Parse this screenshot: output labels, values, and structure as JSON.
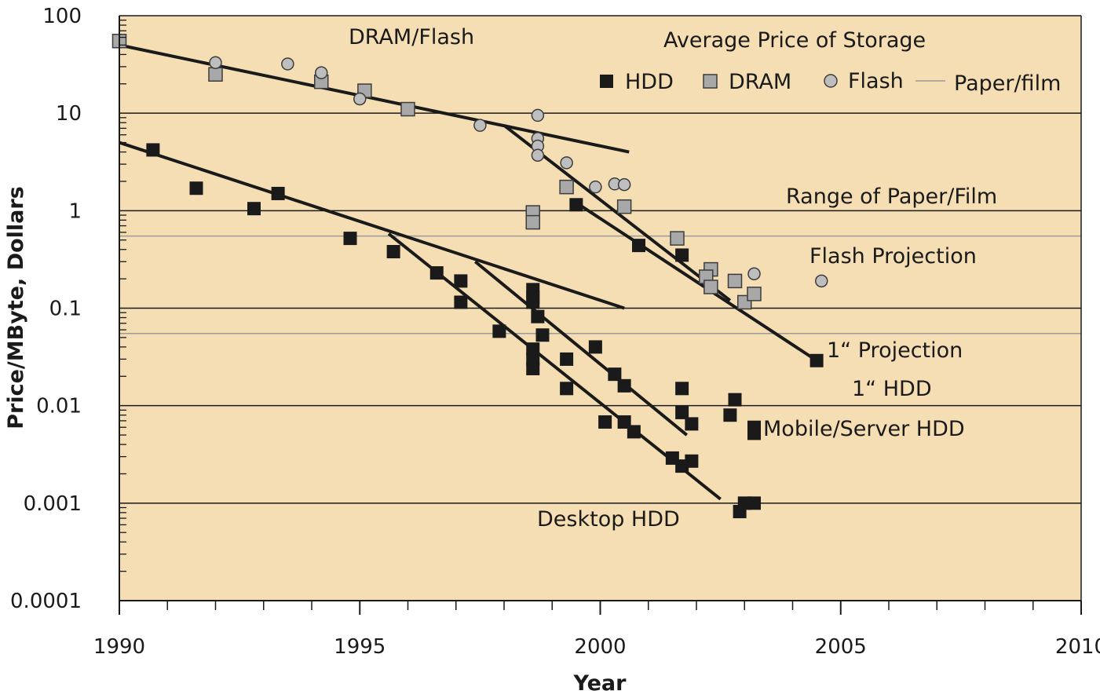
{
  "chart_data": {
    "type": "scatter",
    "title": "Average Price of Storage",
    "xlabel": "Year",
    "ylabel": "Price/MByte, Dollars",
    "xlim": [
      1990,
      2010
    ],
    "ylim": [
      0.0001,
      100
    ],
    "yscale": "log",
    "grid": "horizontal at each decade",
    "legend_placement": "top-right",
    "colors": {
      "background": "#f5deb3",
      "hdd": "#1a1a1a",
      "dram_fill": "#a8a8a8",
      "flash_fill": "#bebebe",
      "paper_film": "#9a9a9a",
      "trend": "#1a1a1a"
    },
    "x_ticks": [
      "1990",
      "1995",
      "2000",
      "2005",
      "2010"
    ],
    "y_ticks": [
      {
        "value": 100,
        "label": "100"
      },
      {
        "value": 10,
        "label": "10"
      },
      {
        "value": 1,
        "label": "1"
      },
      {
        "value": 0.1,
        "label": "0.1"
      },
      {
        "value": 0.01,
        "label": "0.01"
      },
      {
        "value": 0.001,
        "label": "0.001"
      },
      {
        "value": 0.0001,
        "label": "0.0001"
      }
    ],
    "legend": [
      {
        "key": "hdd",
        "label": "HDD",
        "marker": "square-dark"
      },
      {
        "key": "dram",
        "label": "DRAM",
        "marker": "square-gray"
      },
      {
        "key": "flash",
        "label": "Flash",
        "marker": "circle-gray"
      },
      {
        "key": "paper",
        "label": "Paper/film",
        "marker": "line-gray"
      }
    ],
    "paper_film_range": [
      0.055,
      0.55
    ],
    "series": [
      {
        "name": "HDD",
        "marker": "square-dark",
        "points": [
          [
            1990.7,
            4.2
          ],
          [
            1991.6,
            1.7
          ],
          [
            1992.8,
            1.05
          ],
          [
            1993.3,
            1.5
          ],
          [
            1994.8,
            0.52
          ],
          [
            1995.7,
            0.38
          ],
          [
            1996.6,
            0.23
          ],
          [
            1997.1,
            0.19
          ],
          [
            1997.1,
            0.115
          ],
          [
            1997.9,
            0.058
          ],
          [
            1998.6,
            0.155
          ],
          [
            1998.6,
            0.13
          ],
          [
            1998.6,
            0.115
          ],
          [
            1998.7,
            0.082
          ],
          [
            1998.8,
            0.053
          ],
          [
            1998.6,
            0.038
          ],
          [
            1998.6,
            0.03
          ],
          [
            1998.6,
            0.024
          ],
          [
            1999.3,
            0.03
          ],
          [
            1999.3,
            0.015
          ],
          [
            1999.9,
            0.04
          ],
          [
            1999.5,
            1.15
          ],
          [
            2000.3,
            0.021
          ],
          [
            2000.5,
            0.016
          ],
          [
            2000.8,
            0.44
          ],
          [
            2000.1,
            0.0068
          ],
          [
            2000.5,
            0.0068
          ],
          [
            2000.7,
            0.0054
          ],
          [
            2001.7,
            0.35
          ],
          [
            2001.7,
            0.015
          ],
          [
            2001.7,
            0.0085
          ],
          [
            2001.9,
            0.0065
          ],
          [
            2001.5,
            0.0029
          ],
          [
            2001.7,
            0.0024
          ],
          [
            2001.9,
            0.0027
          ],
          [
            2002.8,
            0.0115
          ],
          [
            2002.7,
            0.008
          ],
          [
            2003.2,
            0.006
          ],
          [
            2003.2,
            0.0052
          ],
          [
            2003.0,
            0.001
          ],
          [
            2003.2,
            0.001
          ],
          [
            2002.9,
            0.00082
          ],
          [
            2004.5,
            0.029
          ]
        ]
      },
      {
        "name": "DRAM",
        "marker": "square-gray",
        "points": [
          [
            1990.0,
            55
          ],
          [
            1992.0,
            25
          ],
          [
            1994.2,
            21
          ],
          [
            1995.1,
            17
          ],
          [
            1996.0,
            11
          ],
          [
            1998.6,
            0.96
          ],
          [
            1998.6,
            0.76
          ],
          [
            1999.3,
            1.75
          ],
          [
            2000.5,
            1.1
          ],
          [
            2001.6,
            0.52
          ],
          [
            2002.3,
            0.25
          ],
          [
            2002.2,
            0.21
          ],
          [
            2002.3,
            0.165
          ],
          [
            2002.8,
            0.19
          ],
          [
            2003.0,
            0.115
          ],
          [
            2003.2,
            0.14
          ]
        ]
      },
      {
        "name": "Flash",
        "marker": "circle-gray",
        "points": [
          [
            1992.0,
            33
          ],
          [
            1993.5,
            32
          ],
          [
            1994.2,
            26
          ],
          [
            1995.0,
            14
          ],
          [
            1997.5,
            7.5
          ],
          [
            1998.7,
            9.5
          ],
          [
            1998.7,
            5.5
          ],
          [
            1998.7,
            4.6
          ],
          [
            1998.7,
            3.7
          ],
          [
            1999.3,
            3.1
          ],
          [
            1999.9,
            1.75
          ],
          [
            2000.3,
            1.88
          ],
          [
            2000.5,
            1.85
          ],
          [
            2003.2,
            0.225
          ],
          [
            2004.6,
            0.19
          ]
        ]
      }
    ],
    "trend_lines": [
      {
        "from": [
          1990.0,
          50
        ],
        "to": [
          2000.6,
          4
        ]
      },
      {
        "from": [
          1998.0,
          7.5
        ],
        "to": [
          2002.7,
          0.12
        ]
      },
      {
        "from": [
          1999.4,
          1.3
        ],
        "to": [
          2004.5,
          0.029
        ]
      },
      {
        "from": [
          1990.0,
          5.0
        ],
        "to": [
          2000.5,
          0.1
        ]
      },
      {
        "from": [
          1995.6,
          0.58
        ],
        "to": [
          2002.5,
          0.0011
        ]
      },
      {
        "from": [
          1997.4,
          0.3
        ],
        "to": [
          2001.8,
          0.005
        ]
      }
    ],
    "annotations": {
      "dram_flash": "DRAM/Flash",
      "paper_range": "Range of Paper/Film",
      "flash_projection": "Flash Projection",
      "one_inch_projection": "1“ Projection",
      "one_inch_hdd": "1“ HDD",
      "mobile_server": "Mobile/Server HDD",
      "desktop": "Desktop HDD"
    }
  }
}
